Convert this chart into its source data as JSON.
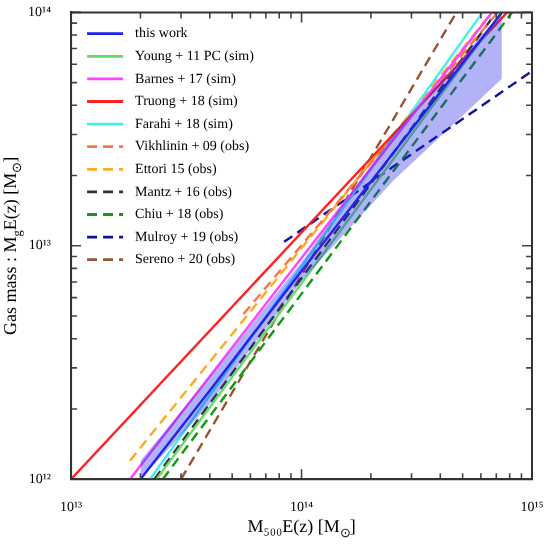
{
  "chart_data": {
    "type": "line",
    "xlabel": "M₅₀₀E(z) [M$_{⊙}$]",
    "ylabel": "Gas mass : M$_{g}$E(z) [M$_{⊙}$]",
    "log": "xy",
    "legend": "top left",
    "grid": false,
    "marker": "none",
    "xlim": [
      10000000000000.0,
      1000000000000000.0
    ],
    "ylim": [
      1000000000000.0,
      100000000000000.0
    ],
    "xticks": [
      {
        "value": 10000000000000.0,
        "label": "10¹³"
      },
      {
        "value": 20000000000000.0,
        "label": null
      },
      {
        "value": 30000000000000.0,
        "label": null
      },
      {
        "value": 40000000000000.0,
        "label": null
      },
      {
        "value": 50000000000000.0,
        "label": null
      },
      {
        "value": 60000000000000.0,
        "label": null
      },
      {
        "value": 70000000000000.0,
        "label": null
      },
      {
        "value": 80000000000000.0,
        "label": null
      },
      {
        "value": 90000000000000.0,
        "label": null
      },
      {
        "value": 100000000000000.0,
        "label": "10¹⁴"
      },
      {
        "value": 200000000000000.0,
        "label": null
      },
      {
        "value": 300000000000000.0,
        "label": null
      },
      {
        "value": 400000000000000.0,
        "label": null
      },
      {
        "value": 500000000000000.0,
        "label": null
      },
      {
        "value": 600000000000000.0,
        "label": null
      },
      {
        "value": 700000000000000.0,
        "label": null
      },
      {
        "value": 800000000000000.0,
        "label": null
      },
      {
        "value": 900000000000000.0,
        "label": null
      },
      {
        "value": 1000000000000000.0,
        "label": "10¹⁵"
      }
    ],
    "yticks": [
      {
        "value": 1000000000000.0,
        "label": "10¹²"
      },
      {
        "value": 2000000000000.0,
        "label": null
      },
      {
        "value": 3000000000000.0,
        "label": null
      },
      {
        "value": 4000000000000.0,
        "label": null
      },
      {
        "value": 5000000000000.0,
        "label": null
      },
      {
        "value": 6000000000000.0,
        "label": null
      },
      {
        "value": 7000000000000.0,
        "label": null
      },
      {
        "value": 8000000000000.0,
        "label": null
      },
      {
        "value": 9000000000000.0,
        "label": null
      },
      {
        "value": 10000000000000.0,
        "label": "10¹³"
      },
      {
        "value": 20000000000000.0,
        "label": null
      },
      {
        "value": 30000000000000.0,
        "label": null
      },
      {
        "value": 40000000000000.0,
        "label": null
      },
      {
        "value": 50000000000000.0,
        "label": null
      },
      {
        "value": 60000000000000.0,
        "label": null
      },
      {
        "value": 70000000000000.0,
        "label": null
      },
      {
        "value": 80000000000000.0,
        "label": null
      },
      {
        "value": 90000000000000.0,
        "label": null
      },
      {
        "value": 100000000000000.0,
        "label": "10¹⁴"
      }
    ],
    "series": [
      {
        "name": "this work",
        "color": "#2222ee",
        "line_style": "solid",
        "x": [
          20000000000000.0,
          40000000000000.0,
          100000000000000.0,
          250000000000000.0,
          740000000000000.0
        ],
        "values": [
          1000000000000.0,
          2400000000000.0,
          7800000000000.0,
          25000000000000.0,
          100000000000000.0
        ],
        "lower": [
          1000000000000.0,
          2100000000000.0,
          7100000000000.0,
          19000000000000.0,
          52000000000000.0
        ],
        "upper": [
          1200000000000.0,
          2750000000000.0,
          8500000000000.0,
          30000000000000.0,
          100000000000000.0
        ]
      },
      {
        "name": "Young + 11 PC (sim)",
        "color": "#66dd66",
        "line_style": "solid",
        "x": [
          23500000000000.0,
          740000000000000.0
        ],
        "values": [
          1000000000000.0,
          100000000000000.0
        ]
      },
      {
        "name": "Barnes + 17 (sim)",
        "color": "#ff44ff",
        "line_style": "solid",
        "x": [
          18000000000000.0,
          670000000000000.0
        ],
        "values": [
          1000000000000.0,
          100000000000000.0
        ]
      },
      {
        "name": "Truong + 18 (sim)",
        "color": "#ff2222",
        "line_style": "solid",
        "x": [
          10000000000000.0,
          780000000000000.0
        ],
        "values": [
          1000000000000.0,
          100000000000000.0
        ]
      },
      {
        "name": "Farahi + 18 (sim)",
        "color": "#44eeee",
        "line_style": "solid",
        "x": [
          22000000000000.0,
          610000000000000.0
        ],
        "values": [
          1000000000000.0,
          100000000000000.0
        ]
      },
      {
        "name": "Vikhlinin + 09 (obs)",
        "color": "#ff7733",
        "line_style": "dashed",
        "x": [
          56000000000000.0,
          710000000000000.0
        ],
        "values": [
          5100000000000.0,
          100000000000000.0
        ]
      },
      {
        "name": "Ettori 15 (obs)",
        "color": "#ffaa22",
        "line_style": "dashed",
        "x": [
          18000000000000.0,
          670000000000000.0
        ],
        "values": [
          1200000000000.0,
          100000000000000.0
        ]
      },
      {
        "name": "Mantz + 16 (obs)",
        "color": "#333333",
        "line_style": "dashed",
        "x": [
          23000000000000.0,
          700000000000000.0
        ],
        "values": [
          1000000000000.0,
          100000000000000.0
        ]
      },
      {
        "name": "Chiu + 18 (obs)",
        "color": "#119911",
        "line_style": "dashed",
        "x": [
          25000000000000.0,
          820000000000000.0
        ],
        "values": [
          1000000000000.0,
          100000000000000.0
        ]
      },
      {
        "name": "Mulroy + 19 (obs)",
        "color": "#111199",
        "line_style": "dashed",
        "x": [
          84000000000000.0,
          1000000000000000.0
        ],
        "values": [
          10400000000000.0,
          56000000000000.0
        ]
      },
      {
        "name": "Sereno + 20 (obs)",
        "color": "#995533",
        "line_style": "dashed",
        "x": [
          30000000000000.0,
          470000000000000.0
        ],
        "values": [
          1000000000000.0,
          100000000000000.0
        ]
      }
    ]
  }
}
